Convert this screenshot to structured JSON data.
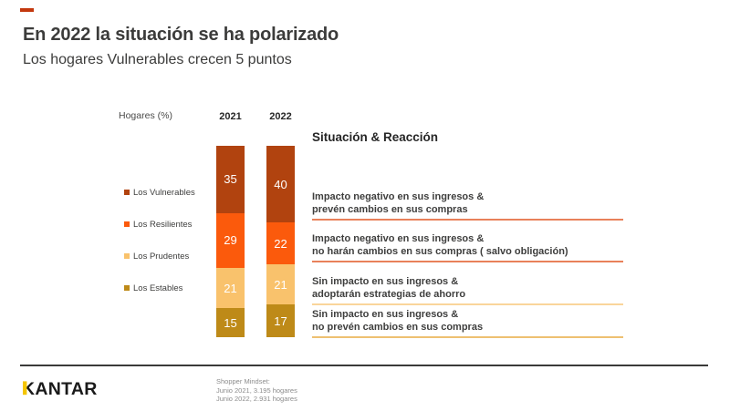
{
  "slide": {
    "title": "En 2022 la situación se ha polarizado",
    "subtitle": "Los hogares Vulnerables crecen 5 puntos",
    "accent_color": "#c3380e"
  },
  "chart_data": {
    "type": "bar",
    "stacked": true,
    "title": "Hogares (%)",
    "categories": [
      "2021",
      "2022"
    ],
    "series": [
      {
        "name": "Los Vulnerables",
        "color": "#b1430f",
        "values": [
          35,
          40
        ]
      },
      {
        "name": "Los Resilientes",
        "color": "#fb5a0c",
        "values": [
          29,
          22
        ]
      },
      {
        "name": "Los Prudentes",
        "color": "#f9c26c",
        "values": [
          21,
          21
        ]
      },
      {
        "name": "Los Estables",
        "color": "#be8a18",
        "values": [
          15,
          17
        ]
      }
    ],
    "ylim": [
      0,
      100
    ],
    "value_labels": true,
    "legend_position": "left",
    "grid": false
  },
  "reactions": {
    "heading": "Situación & Reacción",
    "items": [
      {
        "line1": "Impacto negativo en sus ingresos &",
        "line2": "prevén cambios  en sus compras",
        "underline_color": "#e9815a"
      },
      {
        "line1": "Impacto negativo en sus ingresos &",
        "line2": "no harán cambios en sus compras ( salvo obligación)",
        "underline_color": "#e9815a"
      },
      {
        "line1": "Sin impacto en sus ingresos &",
        "line2": "adoptarán estrategias de ahorro",
        "underline_color": "#fad59b"
      },
      {
        "line1": "Sin impacto en sus ingresos &",
        "line2": "no prevén cambios en sus compras",
        "underline_color": "#eec071"
      }
    ]
  },
  "footer": {
    "logo_text": "KANTAR",
    "logo_accent_color": "#f4c500",
    "note_lines": [
      "Shopper Mindset:",
      "Junio 2021, 3.195 hogares",
      "Junio 2022, 2.931 hogares"
    ]
  }
}
